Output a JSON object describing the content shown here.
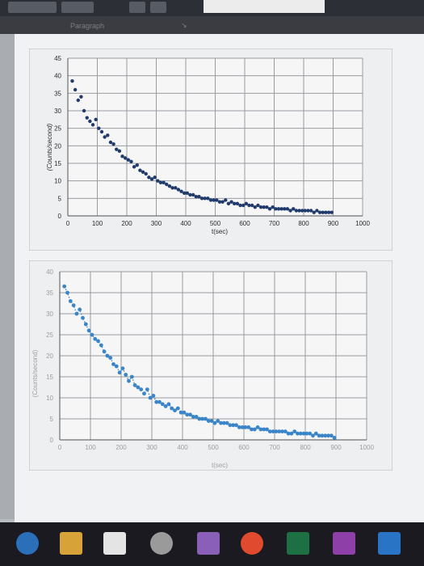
{
  "ribbon": {
    "group_label": "Paragraph"
  },
  "chart_data": [
    {
      "type": "scatter",
      "title": "",
      "xlabel": "t(sec)",
      "ylabel": "(Counts/second)",
      "xlim": [
        0,
        1000
      ],
      "ylim": [
        0,
        45
      ],
      "xticks": [
        "0",
        "100",
        "200",
        "300",
        "400",
        "500",
        "600",
        "700",
        "800",
        "900",
        "1000"
      ],
      "yticks": [
        "0",
        "5",
        "10",
        "15",
        "20",
        "25",
        "30",
        "35",
        "40",
        "45"
      ],
      "grid": true,
      "marker_color": "#1f3a6b",
      "series": [
        {
          "x": [
            15,
            25,
            35,
            45,
            55,
            65,
            75,
            85,
            95,
            105,
            115,
            125,
            135,
            145,
            155,
            165,
            175,
            185,
            195,
            205,
            215,
            225,
            235,
            245,
            255,
            265,
            275,
            285,
            295,
            305,
            315,
            325,
            335,
            345,
            355,
            365,
            375,
            385,
            395,
            405,
            415,
            425,
            435,
            445,
            455,
            465,
            475,
            485,
            495,
            505,
            515,
            525,
            535,
            545,
            555,
            565,
            575,
            585,
            595,
            605,
            615,
            625,
            635,
            645,
            655,
            665,
            675,
            685,
            695,
            705,
            715,
            725,
            735,
            745,
            755,
            765,
            775,
            785,
            795,
            805,
            815,
            825,
            835,
            845,
            855,
            865,
            875,
            885,
            895
          ],
          "y": [
            38.5,
            36,
            33,
            34,
            30,
            28,
            27,
            26,
            27.5,
            25,
            24,
            22.5,
            23,
            21,
            20.5,
            19,
            18.5,
            17,
            16.5,
            16,
            15.5,
            14,
            14.5,
            13,
            12.5,
            12,
            11,
            10.5,
            11,
            10,
            9.5,
            9.5,
            9,
            8.5,
            8,
            8,
            7.5,
            7,
            6.5,
            6.5,
            6,
            6,
            5.5,
            5.5,
            5,
            5,
            5,
            4.5,
            4.5,
            4.5,
            4,
            4,
            4.5,
            3.5,
            4,
            3.5,
            3.5,
            3,
            3,
            3.5,
            3,
            3,
            2.5,
            3,
            2.5,
            2.5,
            2.5,
            2,
            2.5,
            2,
            2,
            2,
            2,
            2,
            1.5,
            2,
            1.5,
            1.5,
            1.5,
            1.5,
            1.5,
            1.5,
            1,
            1.5,
            1,
            1,
            1,
            1,
            1
          ]
        }
      ]
    },
    {
      "type": "scatter",
      "title": "",
      "xlabel": "t(sec)",
      "ylabel": "(Counts/second)",
      "xlim": [
        0,
        1000
      ],
      "ylim": [
        0,
        40
      ],
      "xticks": [
        "0",
        "100",
        "200",
        "300",
        "400",
        "500",
        "600",
        "700",
        "800",
        "900",
        "1000"
      ],
      "yticks": [
        "0",
        "5",
        "10",
        "15",
        "20",
        "25",
        "30",
        "35",
        "40"
      ],
      "grid": true,
      "trendline": "dotted",
      "marker_color": "#3a85c8",
      "series": [
        {
          "x": [
            15,
            25,
            35,
            45,
            55,
            65,
            75,
            85,
            95,
            105,
            115,
            125,
            135,
            145,
            155,
            165,
            175,
            185,
            195,
            205,
            215,
            225,
            235,
            245,
            255,
            265,
            275,
            285,
            295,
            305,
            315,
            325,
            335,
            345,
            355,
            365,
            375,
            385,
            395,
            405,
            415,
            425,
            435,
            445,
            455,
            465,
            475,
            485,
            495,
            505,
            515,
            525,
            535,
            545,
            555,
            565,
            575,
            585,
            595,
            605,
            615,
            625,
            635,
            645,
            655,
            665,
            675,
            685,
            695,
            705,
            715,
            725,
            735,
            745,
            755,
            765,
            775,
            785,
            795,
            805,
            815,
            825,
            835,
            845,
            855,
            865,
            875,
            885,
            895
          ],
          "y": [
            36.5,
            35,
            33,
            32,
            30,
            31,
            29,
            27.5,
            26,
            25,
            24,
            23.5,
            22.5,
            21,
            20,
            19.5,
            18,
            17.5,
            16,
            17,
            15.5,
            14,
            15,
            13,
            12.5,
            12,
            11,
            12,
            10,
            10.5,
            9,
            9,
            8.5,
            8,
            8.5,
            7.5,
            7,
            7.5,
            6.5,
            6.5,
            6,
            6,
            5.5,
            5.5,
            5,
            5,
            5,
            4.5,
            4.5,
            4,
            4.5,
            4,
            4,
            4,
            3.5,
            3.5,
            3.5,
            3,
            3,
            3,
            3,
            2.5,
            2.5,
            3,
            2.5,
            2.5,
            2.5,
            2,
            2,
            2,
            2,
            2,
            2,
            1.5,
            1.5,
            2,
            1.5,
            1.5,
            1.5,
            1.5,
            1.5,
            1,
            1.5,
            1,
            1,
            1,
            1,
            1,
            0.5
          ]
        }
      ]
    }
  ],
  "colors": {
    "taskbar": "#1b1a21",
    "page": "#f1f2f3"
  },
  "taskbar": {
    "icons": [
      "edge-icon",
      "file-explorer-icon",
      "store-icon",
      "media-icon",
      "paint-icon",
      "chrome-icon",
      "excel-icon",
      "onenote-icon",
      "outlook-icon"
    ]
  }
}
